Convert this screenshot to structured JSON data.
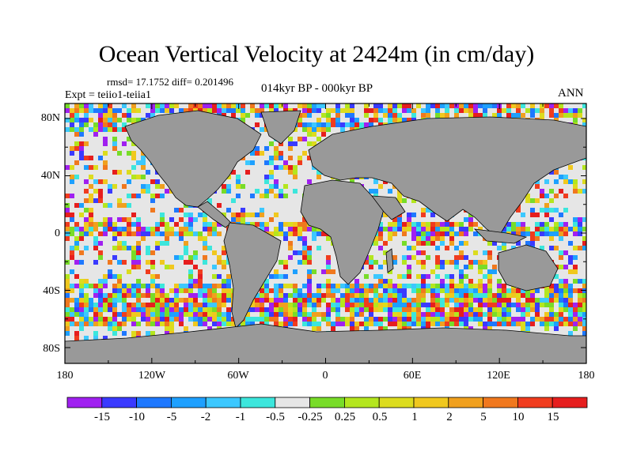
{
  "title": "Ocean Vertical Velocity at 2424m (in cm/day)",
  "stats_line": "rmsd= 17.1752 diff= 0.201496",
  "experiment_line": "Expt = teiio1-teiia1",
  "period_line": "014kyr BP - 000kyr BP",
  "season_label": "ANN",
  "lat_labels": [
    "80N",
    "40N",
    "0",
    "40S",
    "80S"
  ],
  "lon_labels": [
    "180",
    "120W",
    "60W",
    "0",
    "60E",
    "120E",
    "180"
  ],
  "colorbar": {
    "colors": [
      "#a020f0",
      "#3a3aff",
      "#1e78ff",
      "#1ea0ff",
      "#3cc8ff",
      "#3ce6dc",
      "#e6e6e6",
      "#78dc28",
      "#b4e61e",
      "#dcdc1e",
      "#f0c81e",
      "#f0a01e",
      "#f0781e",
      "#f03c1e",
      "#e61e1e"
    ],
    "labels": [
      "-15",
      "-10",
      "-5",
      "-2",
      "-1",
      "-0.5",
      "-0.25",
      "0.25",
      "0.5",
      "1",
      "2",
      "5",
      "10",
      "15"
    ]
  },
  "land_color": "#999999",
  "no_change_color": "#e6e6e6"
}
